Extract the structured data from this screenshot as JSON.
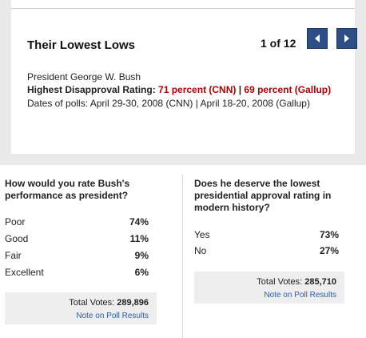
{
  "gallery": {
    "title": "Their Lowest Lows",
    "counter": "1 of 12",
    "subject": "President George W. Bush",
    "rating_label": "Highest Disapproval Rating: ",
    "rating_cnn": "71 percent (CNN)",
    "rating_sep": " | ",
    "rating_gallup": "69 percent (Gallup)",
    "dates": "Dates of polls: April 29-30, 2008 (CNN) | April 18-20, 2008 (Gallup)",
    "colors": {
      "nav_button": "#2b4f86",
      "highlight": "#b30000"
    }
  },
  "poll1": {
    "question": "How would you rate Bush's performance as president?",
    "options": [
      {
        "label": "Poor",
        "pct": "74%"
      },
      {
        "label": "Good",
        "pct": "11%"
      },
      {
        "label": "Fair",
        "pct": "9%"
      },
      {
        "label": "Excellent",
        "pct": "6%"
      }
    ],
    "total_label": "Total Votes: ",
    "total_value": "289,896",
    "note": "Note on Poll Results"
  },
  "poll2": {
    "question": "Does he deserve the lowest presidential approval rating in modern history?",
    "options": [
      {
        "label": "Yes",
        "pct": "73%"
      },
      {
        "label": "No",
        "pct": "27%"
      }
    ],
    "total_label": "Total Votes: ",
    "total_value": "285,710",
    "note": "Note on Poll Results"
  }
}
